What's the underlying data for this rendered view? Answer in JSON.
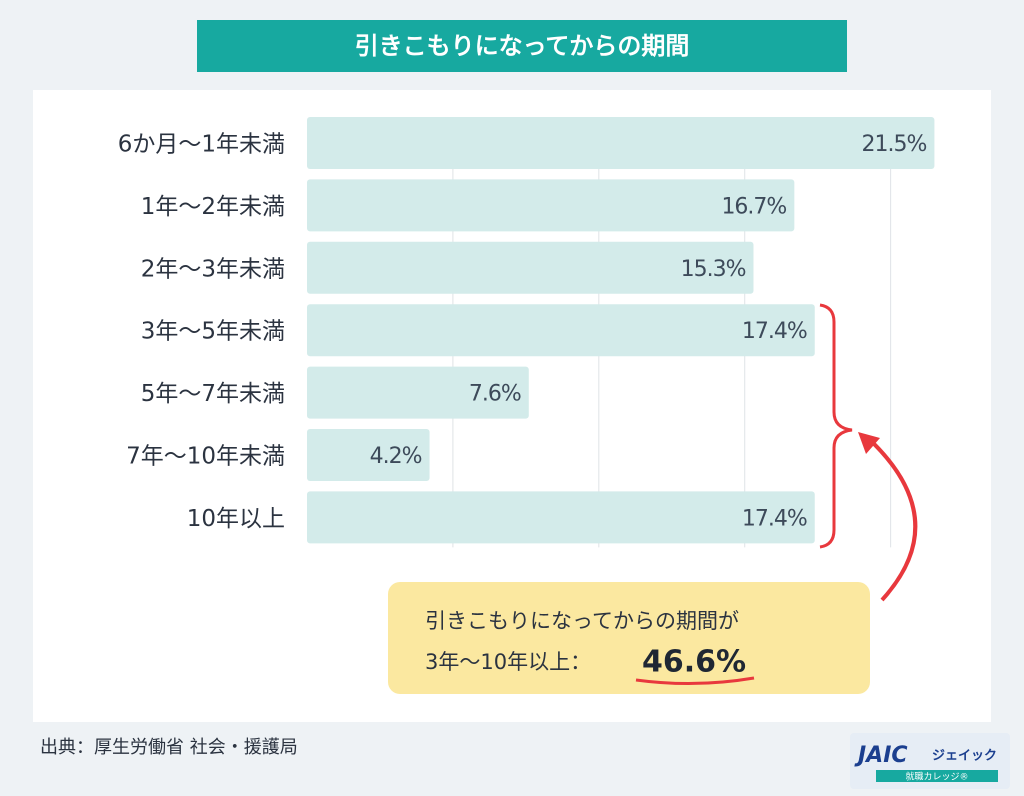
{
  "chart_data": {
    "type": "barh",
    "title": "引きこもりになってからの期間",
    "categories": [
      "6か月〜1年未満",
      "1年〜2年未満",
      "2年〜3年未満",
      "3年〜5年未満",
      "5年〜7年未満",
      "7年〜10年未満",
      "10年以上"
    ],
    "values": [
      21.5,
      16.7,
      15.3,
      17.4,
      7.6,
      4.2,
      17.4
    ],
    "value_labels": [
      "21.5%",
      "16.7%",
      "15.3%",
      "17.4%",
      "7.6%",
      "4.2%",
      "17.4%"
    ],
    "color": "#d3ebea",
    "xlim": [
      0,
      22
    ],
    "xticks": [
      5,
      10,
      15,
      20
    ],
    "grid": true,
    "annotation": {
      "lines": [
        "引きこもりになってからの期間が",
        "3年〜10年以上："
      ],
      "highlight": "46.6%"
    },
    "source": "出典：厚生労働省 社会・援護局"
  },
  "logo": {
    "mark": "JAIC",
    "name": "ジェイック",
    "sub": "就職カレッジ®"
  }
}
